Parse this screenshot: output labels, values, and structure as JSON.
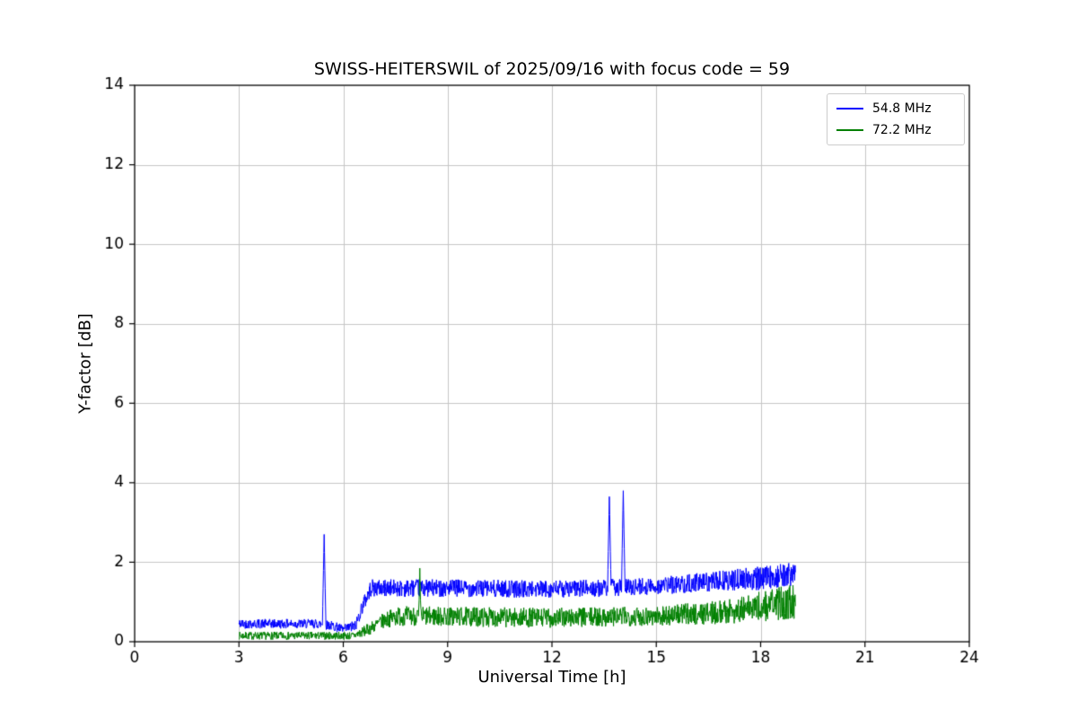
{
  "chart_data": {
    "type": "line",
    "title": "SWISS-HEITERSWIL of 2025/09/16 with focus code = 59",
    "xlabel": "Universal Time [h]",
    "ylabel": "Y-factor [dB]",
    "xlim": [
      0,
      24
    ],
    "ylim": [
      0,
      14
    ],
    "xticks": [
      0,
      3,
      6,
      9,
      12,
      15,
      18,
      21,
      24
    ],
    "yticks": [
      0,
      2,
      4,
      6,
      8,
      10,
      12,
      14
    ],
    "grid": true,
    "grid_color": "#c6c6c6",
    "legend": {
      "position": "upper right"
    },
    "series": [
      {
        "name": "54.8 MHz",
        "color": "#0000ff",
        "seed": 42,
        "x_start": 3.0,
        "x_end": 19.0,
        "envelope": [
          {
            "x": 3.0,
            "y": 0.45,
            "n": 0.12
          },
          {
            "x": 5.3,
            "y": 0.45,
            "n": 0.12
          },
          {
            "x": 5.7,
            "y": 0.4,
            "n": 0.12
          },
          {
            "x": 6.0,
            "y": 0.3,
            "n": 0.13
          },
          {
            "x": 6.35,
            "y": 0.4,
            "n": 0.15
          },
          {
            "x": 6.55,
            "y": 0.9,
            "n": 0.2
          },
          {
            "x": 6.8,
            "y": 1.35,
            "n": 0.22
          },
          {
            "x": 9.0,
            "y": 1.35,
            "n": 0.22
          },
          {
            "x": 12.0,
            "y": 1.32,
            "n": 0.22
          },
          {
            "x": 13.5,
            "y": 1.35,
            "n": 0.22
          },
          {
            "x": 15.0,
            "y": 1.4,
            "n": 0.22
          },
          {
            "x": 16.5,
            "y": 1.5,
            "n": 0.25
          },
          {
            "x": 18.0,
            "y": 1.6,
            "n": 0.3
          },
          {
            "x": 19.0,
            "y": 1.7,
            "n": 0.3
          }
        ],
        "spikes": [
          {
            "x": 5.45,
            "y": 2.7,
            "w": 0.05
          },
          {
            "x": 13.65,
            "y": 3.65,
            "w": 0.05
          },
          {
            "x": 14.05,
            "y": 3.8,
            "w": 0.05
          }
        ]
      },
      {
        "name": "72.2 MHz",
        "color": "#008000",
        "seed": 7,
        "x_start": 3.0,
        "x_end": 19.0,
        "envelope": [
          {
            "x": 3.0,
            "y": 0.15,
            "n": 0.1
          },
          {
            "x": 6.3,
            "y": 0.15,
            "n": 0.1
          },
          {
            "x": 6.7,
            "y": 0.3,
            "n": 0.15
          },
          {
            "x": 7.2,
            "y": 0.55,
            "n": 0.2
          },
          {
            "x": 7.6,
            "y": 0.65,
            "n": 0.25
          },
          {
            "x": 12.0,
            "y": 0.6,
            "n": 0.25
          },
          {
            "x": 15.0,
            "y": 0.65,
            "n": 0.25
          },
          {
            "x": 17.0,
            "y": 0.75,
            "n": 0.3
          },
          {
            "x": 18.5,
            "y": 0.95,
            "n": 0.42
          },
          {
            "x": 19.0,
            "y": 1.0,
            "n": 0.45
          }
        ],
        "spikes": [
          {
            "x": 8.2,
            "y": 1.85,
            "w": 0.03
          }
        ]
      }
    ]
  }
}
